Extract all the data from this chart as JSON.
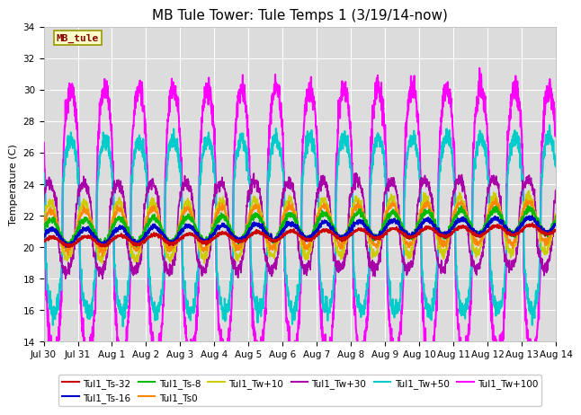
{
  "title": "MB Tule Tower: Tule Temps 1 (3/19/14-now)",
  "ylabel": "Temperature (C)",
  "ylim": [
    14,
    34
  ],
  "yticks": [
    14,
    16,
    18,
    20,
    22,
    24,
    26,
    28,
    30,
    32,
    34
  ],
  "x_tick_labels": [
    "Jul 30",
    "Jul 31",
    "Aug 1",
    "Aug 2",
    "Aug 3",
    "Aug 4",
    "Aug 5",
    "Aug 6",
    "Aug 7",
    "Aug 8",
    "Aug 9",
    "Aug 10",
    "Aug 11",
    "Aug 12",
    "Aug 13",
    "Aug 14"
  ],
  "series": [
    {
      "name": "Tul1_Ts-32",
      "color": "#cc0000",
      "lw": 1.5
    },
    {
      "name": "Tul1_Ts-16",
      "color": "#0000cc",
      "lw": 1.5
    },
    {
      "name": "Tul1_Ts-8",
      "color": "#00bb00",
      "lw": 1.5
    },
    {
      "name": "Tul1_Ts0",
      "color": "#ff8800",
      "lw": 1.2
    },
    {
      "name": "Tul1_Tw+10",
      "color": "#cccc00",
      "lw": 1.2
    },
    {
      "name": "Tul1_Tw+30",
      "color": "#aa00aa",
      "lw": 1.2
    },
    {
      "name": "Tul1_Tw+50",
      "color": "#00cccc",
      "lw": 1.5
    },
    {
      "name": "Tul1_Tw+100",
      "color": "#ff00ff",
      "lw": 1.5
    }
  ],
  "bg_color": "#dcdcdc",
  "grid_color": "#ffffff",
  "legend_box_facecolor": "#ffffcc",
  "legend_box_edgecolor": "#999900",
  "legend_text_color": "#880000",
  "title_fontsize": 11,
  "tick_fontsize": 7.5,
  "label_fontsize": 8,
  "legend_fontsize": 7.5,
  "n_days": 15,
  "pts_per_day": 144
}
